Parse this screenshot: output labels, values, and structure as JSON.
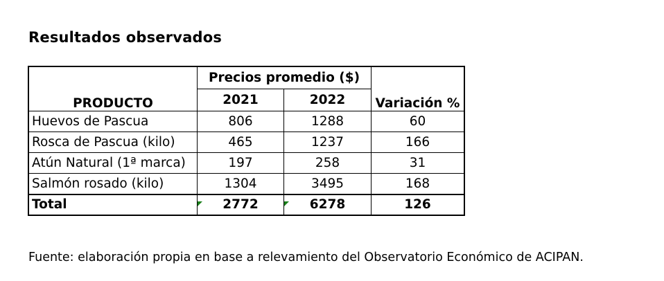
{
  "title": "Resultados observados",
  "table": {
    "group_header": "Precios promedio ($)",
    "col_product": "PRODUCTO",
    "col_2021": "2021",
    "col_2022": "2022",
    "col_variation": "Variación %",
    "rows": [
      {
        "product": "Huevos de Pascua",
        "y2021": "806",
        "y2022": "1288",
        "variation": "60"
      },
      {
        "product": "Rosca de Pascua (kilo)",
        "y2021": "465",
        "y2022": "1237",
        "variation": "166"
      },
      {
        "product": "Atún Natural (1ª marca)",
        "y2021": "197",
        "y2022": "258",
        "variation": "31"
      },
      {
        "product": "Salmón rosado (kilo)",
        "y2021": "1304",
        "y2022": "3495",
        "variation": "168"
      }
    ],
    "total": {
      "label": "Total",
      "y2021": "2772",
      "y2022": "6278",
      "variation": "126"
    }
  },
  "footer": "Fuente: elaboración propia en base a relevamiento del Observatorio Económico de ACIPAN.",
  "colors": {
    "text": "#000000",
    "background": "#ffffff",
    "error_marker": "#1a7f1a"
  }
}
